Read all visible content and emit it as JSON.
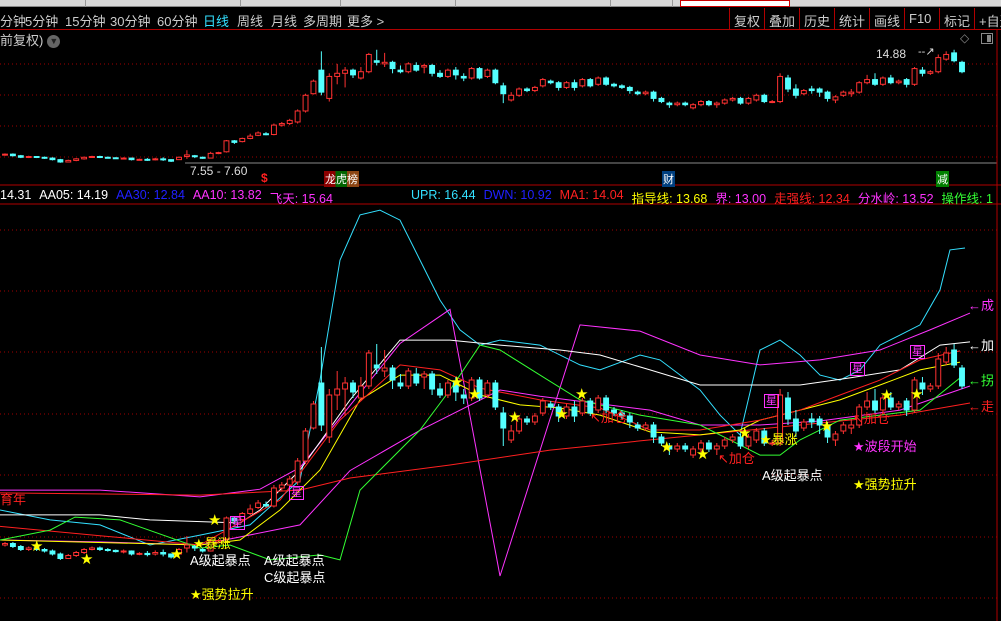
{
  "periods": [
    {
      "label": "分钟",
      "active": false
    },
    {
      "label": "5分钟",
      "active": false
    },
    {
      "label": "15分钟",
      "active": false
    },
    {
      "label": "30分钟",
      "active": false
    },
    {
      "label": "60分钟",
      "active": false
    },
    {
      "label": "日线",
      "active": true
    },
    {
      "label": "周线",
      "active": false
    },
    {
      "label": "月线",
      "active": false
    },
    {
      "label": "多周期",
      "active": false
    },
    {
      "label": "更多 >",
      "active": false
    }
  ],
  "toolbar": [
    "复权",
    "叠加",
    "历史",
    "统计",
    "画线",
    "F10",
    "标记",
    "+自选"
  ],
  "adjust_label": "前复权)",
  "main_chart": {
    "high_label": "14.88",
    "low_label": "7.55 - 7.60",
    "markers": {
      "dollar": "$",
      "list": "龙虎榜",
      "finance": "财",
      "reduce": "减"
    },
    "colors": {
      "up": "#ff3232",
      "down": "#54ffff",
      "grid": "#a00000"
    }
  },
  "candles": [
    [
      8.0,
      8.05,
      8.1,
      7.95
    ],
    [
      8.05,
      7.95,
      8.1,
      7.9
    ],
    [
      7.95,
      7.85,
      8.0,
      7.8
    ],
    [
      7.85,
      7.9,
      7.95,
      7.8
    ],
    [
      7.9,
      7.85,
      7.92,
      7.8
    ],
    [
      7.85,
      7.8,
      7.9,
      7.75
    ],
    [
      7.8,
      7.7,
      7.85,
      7.65
    ],
    [
      7.7,
      7.55,
      7.75,
      7.5
    ],
    [
      7.55,
      7.65,
      7.7,
      7.55
    ],
    [
      7.65,
      7.75,
      7.8,
      7.6
    ],
    [
      7.75,
      7.85,
      7.9,
      7.7
    ],
    [
      7.85,
      7.9,
      7.95,
      7.82
    ],
    [
      7.9,
      7.85,
      7.95,
      7.8
    ],
    [
      7.85,
      7.82,
      7.9,
      7.78
    ],
    [
      7.82,
      7.78,
      7.85,
      7.75
    ],
    [
      7.78,
      7.8,
      7.85,
      7.72
    ],
    [
      7.8,
      7.7,
      7.82,
      7.65
    ],
    [
      7.7,
      7.72,
      7.76,
      7.66
    ],
    [
      7.72,
      7.68,
      7.8,
      7.62
    ],
    [
      7.7,
      7.75,
      7.82,
      7.65
    ],
    [
      7.75,
      7.7,
      7.85,
      7.62
    ],
    [
      7.7,
      7.6,
      7.72,
      7.55
    ],
    [
      7.7,
      7.85,
      7.9,
      7.68
    ],
    [
      7.9,
      8.0,
      8.3,
      7.75
    ],
    [
      7.95,
      7.9,
      8.0,
      7.8
    ],
    [
      7.85,
      7.8,
      7.9,
      7.75
    ],
    [
      7.8,
      8.1,
      8.2,
      7.78
    ],
    [
      8.1,
      8.15,
      8.2,
      8.05
    ],
    [
      8.2,
      8.9,
      8.95,
      8.15
    ],
    [
      8.9,
      8.8,
      8.95,
      8.7
    ],
    [
      8.85,
      9.05,
      9.1,
      8.8
    ],
    [
      9.05,
      9.2,
      9.35,
      9.0
    ],
    [
      9.25,
      9.4,
      9.5,
      9.2
    ],
    [
      9.35,
      9.3,
      9.45,
      9.25
    ],
    [
      9.3,
      9.9,
      10.0,
      9.25
    ],
    [
      9.9,
      10.0,
      10.1,
      9.8
    ],
    [
      10.0,
      10.2,
      10.3,
      9.9
    ],
    [
      10.1,
      10.8,
      10.9,
      10.0
    ],
    [
      10.8,
      11.8,
      11.9,
      10.7
    ],
    [
      11.9,
      12.7,
      12.8,
      11.85
    ],
    [
      13.4,
      12.0,
      14.6,
      11.8
    ],
    [
      11.6,
      13.0,
      13.2,
      11.4
    ],
    [
      13.0,
      13.2,
      13.8,
      12.5
    ],
    [
      13.2,
      13.4,
      13.6,
      12.3
    ],
    [
      13.4,
      13.1,
      13.5,
      12.9
    ],
    [
      12.9,
      13.3,
      13.6,
      12.8
    ],
    [
      13.3,
      14.4,
      14.5,
      13.2
    ],
    [
      14.0,
      13.9,
      14.7,
      13.7
    ],
    [
      13.8,
      13.9,
      14.5,
      13.6
    ],
    [
      13.9,
      13.5,
      14.0,
      13.2
    ],
    [
      13.4,
      13.3,
      13.7,
      13.2
    ],
    [
      13.3,
      13.8,
      13.9,
      13.2
    ],
    [
      13.7,
      13.4,
      13.9,
      13.3
    ],
    [
      13.6,
      13.7,
      13.8,
      13.2
    ],
    [
      13.7,
      13.2,
      13.8,
      13.0
    ],
    [
      13.2,
      13.0,
      13.4,
      12.9
    ],
    [
      13.0,
      13.4,
      13.5,
      12.9
    ],
    [
      13.4,
      13.1,
      13.6,
      12.8
    ],
    [
      13.0,
      12.9,
      13.2,
      12.7
    ],
    [
      12.9,
      13.5,
      13.6,
      12.8
    ],
    [
      13.5,
      12.9,
      13.6,
      12.8
    ],
    [
      13.0,
      13.4,
      13.5,
      12.9
    ],
    [
      13.4,
      12.6,
      13.5,
      12.5
    ],
    [
      12.4,
      11.9,
      12.6,
      11.3
    ],
    [
      11.5,
      11.8,
      12.0,
      11.4
    ],
    [
      11.8,
      12.2,
      12.3,
      11.7
    ],
    [
      12.2,
      12.1,
      12.3,
      12.0
    ],
    [
      12.1,
      12.3,
      12.4,
      12.0
    ],
    [
      12.4,
      12.8,
      12.9,
      12.3
    ],
    [
      12.7,
      12.6,
      12.8,
      12.5
    ],
    [
      12.6,
      12.3,
      12.7,
      12.1
    ],
    [
      12.3,
      12.6,
      12.7,
      12.2
    ],
    [
      12.6,
      12.3,
      12.8,
      12.1
    ],
    [
      12.4,
      12.8,
      12.9,
      12.3
    ],
    [
      12.8,
      12.4,
      12.9,
      12.3
    ],
    [
      12.5,
      12.9,
      13.0,
      12.4
    ],
    [
      12.9,
      12.5,
      13.0,
      12.4
    ],
    [
      12.5,
      12.4,
      12.6,
      12.3
    ],
    [
      12.4,
      12.3,
      12.5,
      12.2
    ],
    [
      12.3,
      12.1,
      12.4,
      11.9
    ],
    [
      12.0,
      11.9,
      12.1,
      11.8
    ],
    [
      11.9,
      12.0,
      12.1,
      11.8
    ],
    [
      12.0,
      11.6,
      12.1,
      11.4
    ],
    [
      11.6,
      11.4,
      11.7,
      11.3
    ],
    [
      11.3,
      11.2,
      11.4,
      11.0
    ],
    [
      11.2,
      11.3,
      11.4,
      11.1
    ],
    [
      11.3,
      11.2,
      11.4,
      11.1
    ],
    [
      11.0,
      11.2,
      11.3,
      10.9
    ],
    [
      11.2,
      11.4,
      11.5,
      11.1
    ],
    [
      11.4,
      11.2,
      11.5,
      11.1
    ],
    [
      11.2,
      11.3,
      11.4,
      11.0
    ],
    [
      11.3,
      11.5,
      11.6,
      11.2
    ],
    [
      11.5,
      11.6,
      11.7,
      11.4
    ],
    [
      11.6,
      11.3,
      11.7,
      11.2
    ],
    [
      11.3,
      11.6,
      11.7,
      11.2
    ],
    [
      11.5,
      11.8,
      11.9,
      11.4
    ],
    [
      11.8,
      11.4,
      11.9,
      11.3
    ],
    [
      11.4,
      11.4,
      11.5,
      11.3
    ],
    [
      11.4,
      13.0,
      13.2,
      11.3
    ],
    [
      12.9,
      12.2,
      13.1,
      12.0
    ],
    [
      12.2,
      11.8,
      12.5,
      11.6
    ],
    [
      11.9,
      12.1,
      12.2,
      11.8
    ],
    [
      12.2,
      12.1,
      12.4,
      11.9
    ],
    [
      12.2,
      12.0,
      12.3,
      11.7
    ],
    [
      12.0,
      11.6,
      12.1,
      11.4
    ],
    [
      11.5,
      11.7,
      11.8,
      11.3
    ],
    [
      11.8,
      12.0,
      12.1,
      11.7
    ],
    [
      11.9,
      12.0,
      12.2,
      11.7
    ],
    [
      12.0,
      12.6,
      12.7,
      11.9
    ],
    [
      12.6,
      12.8,
      13.1,
      12.5
    ],
    [
      12.8,
      12.5,
      13.2,
      12.4
    ],
    [
      12.5,
      12.9,
      13.0,
      12.4
    ],
    [
      12.9,
      12.6,
      13.1,
      12.5
    ],
    [
      12.6,
      12.7,
      12.8,
      12.5
    ],
    [
      12.8,
      12.5,
      12.9,
      12.3
    ],
    [
      12.5,
      13.5,
      13.6,
      12.4
    ],
    [
      13.4,
      13.2,
      13.6,
      13.0
    ],
    [
      13.2,
      13.3,
      13.4,
      13.1
    ],
    [
      13.3,
      14.2,
      14.4,
      13.2
    ],
    [
      14.1,
      14.4,
      14.6,
      14.0
    ],
    [
      14.5,
      14.0,
      14.7,
      13.9
    ],
    [
      13.9,
      13.3,
      14.0,
      13.2
    ]
  ],
  "indicator": {
    "legend": [
      {
        "text": "14.31",
        "color": "#ffffff"
      },
      {
        "text": "AA05: 14.19",
        "color": "#ffffff"
      },
      {
        "text": "AA30: 12.84",
        "color": "#2020ff"
      },
      {
        "text": "AA10: 13.82",
        "color": "#ff33ff"
      },
      {
        "text": "飞天: 15.64",
        "color": "#ff33ff"
      },
      {
        "text": "UPR: 16.44",
        "color": "#33e0ff"
      },
      {
        "text": "DWN: 10.92",
        "color": "#2020ff"
      },
      {
        "text": "MA1: 14.04",
        "color": "#ff2020"
      },
      {
        "text": "指导线: 13.68",
        "color": "#ffff00"
      },
      {
        "text": "界: 13.00",
        "color": "#ff33ff"
      },
      {
        "text": "走强线: 12.34",
        "color": "#ff2020"
      },
      {
        "text": "分水岭: 13.52",
        "color": "#ff33ff"
      },
      {
        "text": "操作线: 1",
        "color": "#33ff33"
      }
    ],
    "lines": [
      {
        "color": "#33e0ff",
        "x": [
          0,
          50,
          100,
          150,
          200,
          250,
          300,
          320,
          340,
          360,
          380,
          400,
          420,
          440,
          460,
          480,
          500,
          540,
          580,
          600,
          640,
          660,
          700,
          720,
          740,
          760,
          780,
          800,
          820,
          840,
          860,
          880,
          900,
          920,
          940,
          950,
          965
        ],
        "y": [
          9.13,
          8.81,
          8.65,
          8.0,
          8.32,
          8.65,
          10.1,
          13.32,
          17.19,
          18.65,
          18.8,
          18.48,
          17.19,
          15.9,
          14.94,
          14.45,
          14.61,
          14.45,
          13.81,
          13.65,
          14.13,
          13.97,
          13.0,
          12.19,
          11.55,
          14.29,
          14.61,
          14.13,
          13.48,
          13.32,
          13.65,
          14.45,
          14.77,
          15.1,
          16.23,
          17.52,
          17.58
        ]
      },
      {
        "color": "#ff33ff",
        "x": [
          0,
          100,
          200,
          260,
          300,
          350,
          400,
          450,
          500,
          580,
          640,
          700,
          760,
          820,
          880,
          930,
          970
        ],
        "y": [
          9.77,
          9.77,
          9.55,
          9.8,
          10.5,
          12.5,
          14.5,
          15.6,
          7.0,
          15.1,
          14.9,
          14.13,
          13.81,
          13.97,
          14.29,
          14.94,
          15.48
        ]
      },
      {
        "color": "#ff33ff",
        "x": [
          0,
          100,
          200,
          300,
          350,
          420,
          500,
          540,
          650,
          700,
          760,
          820,
          900,
          970
        ],
        "y": [
          8.16,
          8.1,
          8.0,
          8.65,
          10.4,
          11.7,
          13.0,
          12.8,
          12.35,
          11.87,
          11.87,
          12.0,
          12.35,
          13.13
        ]
      },
      {
        "color": "#ffffff",
        "x": [
          0,
          100,
          150,
          240,
          260,
          300,
          350,
          400,
          450,
          500,
          560,
          600,
          650,
          700,
          760,
          800,
          850,
          900,
          940,
          970
        ],
        "y": [
          8.97,
          8.97,
          8.81,
          8.71,
          9.13,
          10.42,
          12.68,
          14.61,
          14.61,
          14.45,
          14.29,
          14.13,
          13.65,
          13.16,
          13.16,
          13.16,
          13.39,
          13.65,
          14.45,
          14.55
        ]
      },
      {
        "color": "#ff2020",
        "x": [
          0,
          200,
          300,
          350,
          450,
          550,
          650,
          750,
          800,
          900,
          970
        ],
        "y": [
          9.68,
          9.61,
          9.77,
          10.16,
          10.58,
          11.06,
          11.39,
          11.71,
          11.87,
          12.19,
          12.58
        ]
      },
      {
        "color": "#ffff00",
        "x": [
          0,
          200,
          240,
          280,
          320,
          360,
          400,
          440,
          480,
          520,
          560,
          600,
          650,
          700,
          740,
          760,
          800,
          840,
          880,
          920,
          960
        ],
        "y": [
          8.16,
          8.0,
          8.16,
          9.13,
          10.42,
          12.68,
          13.48,
          13.48,
          12.84,
          12.52,
          12.42,
          12.19,
          11.65,
          11.55,
          11.71,
          12.03,
          12.35,
          12.68,
          13.16,
          13.65,
          13.9
        ]
      },
      {
        "color": "#ff2020",
        "x": [
          0,
          100,
          200,
          280,
          340,
          400,
          440,
          480,
          540,
          600,
          650,
          700,
          760,
          800,
          840,
          880,
          920,
          960
        ],
        "y": [
          8.6,
          8.3,
          8.0,
          9.45,
          12.03,
          13.81,
          13.65,
          13.06,
          12.68,
          12.42,
          11.71,
          11.71,
          12.03,
          12.35,
          12.84,
          13.32,
          13.97,
          14.26
        ]
      },
      {
        "color": "#33ff33",
        "x": [
          0,
          50,
          75,
          120,
          200,
          230,
          270,
          320,
          340,
          360,
          380,
          420,
          450,
          480,
          500,
          540,
          580,
          640,
          700,
          740,
          760,
          780,
          800,
          840,
          880,
          920,
          960
        ],
        "y": [
          8.16,
          8.48,
          8.9,
          8.81,
          7.9,
          8.0,
          7.52,
          7.68,
          7.52,
          9.77,
          10.42,
          11.71,
          13.0,
          14.45,
          14.29,
          13.48,
          12.68,
          12.19,
          11.87,
          11.23,
          10.9,
          10.9,
          11.39,
          12.03,
          12.19,
          12.35,
          13.39
        ]
      }
    ],
    "right_labels": [
      {
        "text": "←成",
        "color": "#ff33ff"
      },
      {
        "text": "←加",
        "color": "#ffffff"
      },
      {
        "text": "←拐",
        "color": "#33ff33"
      },
      {
        "text": "←走",
        "color": "#ff2020"
      }
    ],
    "annotations": {
      "left_red": "育年",
      "surge_1": "★暴涨",
      "a_level_1": "A级起暴点",
      "a_level_2": "A级起暴点",
      "c_level": "C级起暴点",
      "strong_pull_1": "★强势拉升",
      "add_pos_1": "↖加仓",
      "add_pos_2": "↖加仓",
      "add_pos_3": "↖加仓",
      "surge_2": "★暴涨",
      "a_level_3": "A级起暴点",
      "wave_start": "★波段开始",
      "strong_pull_2": "★强势拉升",
      "star_tag": "星"
    }
  }
}
